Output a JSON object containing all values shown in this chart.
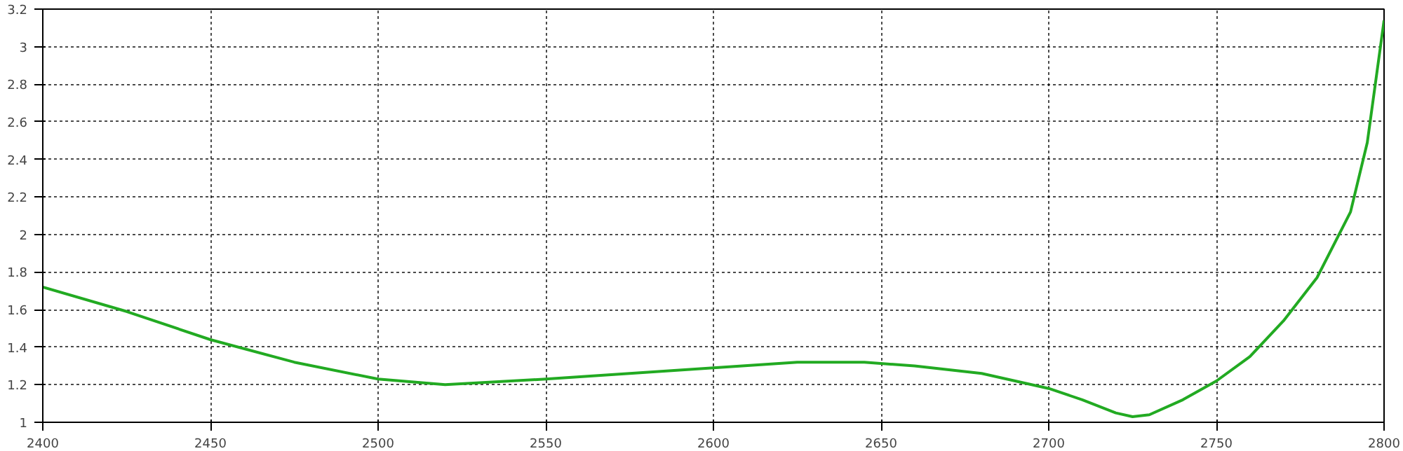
{
  "chart_data": {
    "type": "line",
    "xlim": [
      2400,
      2800
    ],
    "ylim": [
      1,
      3.2
    ],
    "xticks": [
      2400,
      2450,
      2500,
      2550,
      2600,
      2650,
      2700,
      2750,
      2800
    ],
    "yticks": [
      1,
      1.2,
      1.4,
      1.6,
      1.8,
      2,
      2.2,
      2.4,
      2.6,
      2.8,
      3,
      3.2
    ],
    "grid": true,
    "marker": "none",
    "line_style": "solid",
    "x": [
      2400,
      2425,
      2450,
      2475,
      2500,
      2520,
      2550,
      2575,
      2600,
      2625,
      2645,
      2660,
      2680,
      2700,
      2710,
      2720,
      2725,
      2730,
      2740,
      2750,
      2760,
      2770,
      2780,
      2790,
      2795,
      2800
    ],
    "series": [
      {
        "color": "#22aa22",
        "values": [
          1.72,
          1.59,
          1.44,
          1.32,
          1.23,
          1.2,
          1.23,
          1.26,
          1.29,
          1.32,
          1.32,
          1.3,
          1.26,
          1.18,
          1.12,
          1.05,
          1.03,
          1.04,
          1.12,
          1.22,
          1.35,
          1.54,
          1.77,
          2.12,
          2.49,
          3.14
        ]
      }
    ]
  }
}
